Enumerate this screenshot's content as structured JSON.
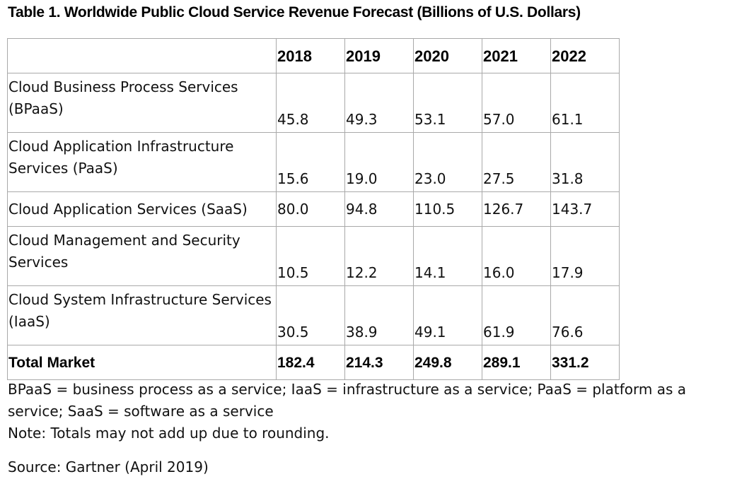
{
  "title": "Table 1. Worldwide Public Cloud Service Revenue Forecast (Billions of U.S. Dollars)",
  "table": {
    "corner": "",
    "years": [
      "2018",
      "2019",
      "2020",
      "2021",
      "2022"
    ],
    "rows": [
      {
        "label": "Cloud Business Process Services (BPaaS)",
        "values": [
          "45.8",
          "49.3",
          "53.1",
          "57.0",
          "61.1"
        ]
      },
      {
        "label": "Cloud Application Infrastructure Services (PaaS)",
        "values": [
          "15.6",
          "19.0",
          "23.0",
          "27.5",
          "31.8"
        ]
      },
      {
        "label": "Cloud Application Services (SaaS)",
        "values": [
          "80.0",
          "94.8",
          "110.5",
          "126.7",
          "143.7"
        ]
      },
      {
        "label": "Cloud Management and Security Services",
        "values": [
          "10.5",
          "12.2",
          "14.1",
          "16.0",
          "17.9"
        ]
      },
      {
        "label": "Cloud System Infrastructure Services (IaaS)",
        "values": [
          "30.5",
          "38.9",
          "49.1",
          "61.9",
          "76.6"
        ]
      }
    ],
    "total": {
      "label": "Total Market",
      "values": [
        "182.4",
        "214.3",
        "249.8",
        "289.1",
        "331.2"
      ]
    }
  },
  "notes": {
    "abbreviations": "BPaaS = business process as a service; IaaS = infrastructure as a service; PaaS = platform as a service; SaaS = software as a service",
    "rounding": "Note: Totals may not add up due to rounding.",
    "source": "Source: Gartner (April 2019)"
  }
}
